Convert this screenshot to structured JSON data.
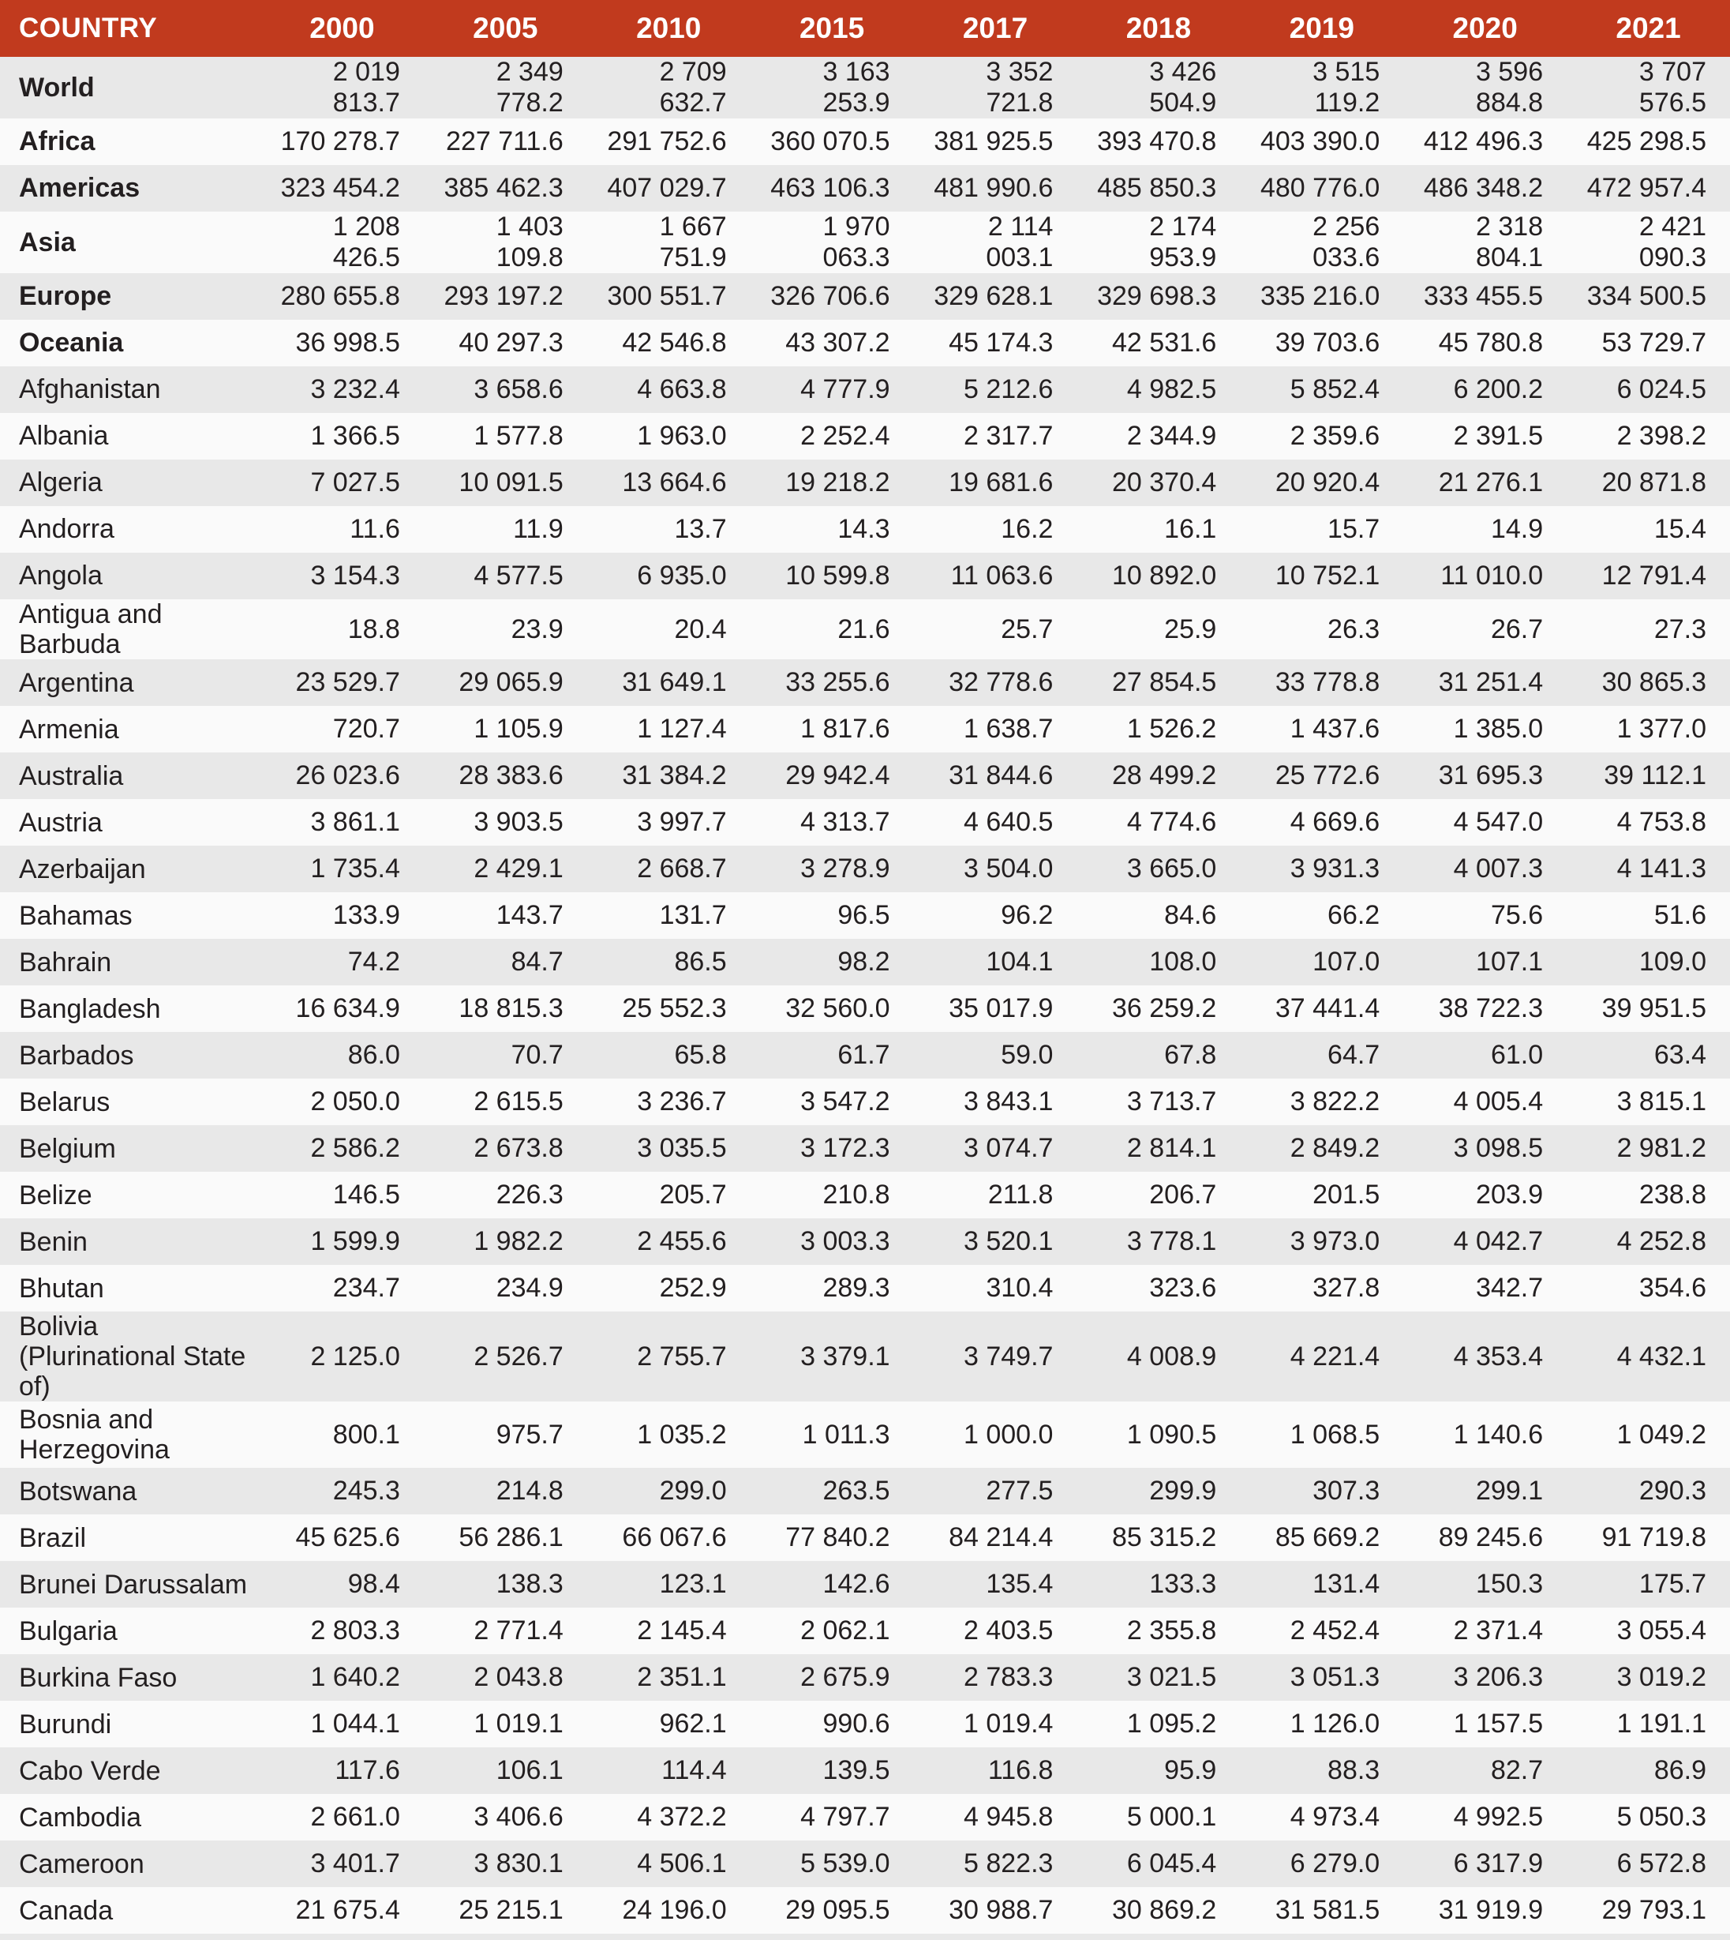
{
  "colors": {
    "header_bg": "#C13A1E",
    "header_text": "#FFFFFF",
    "stripe_row_bg": "#E8E8E8",
    "plain_row_bg": "#FAFAFA",
    "text": "#231F20"
  },
  "table": {
    "header": {
      "country": "COUNTRY",
      "years": [
        "2000",
        "2005",
        "2010",
        "2015",
        "2017",
        "2018",
        "2019",
        "2020",
        "2021"
      ]
    },
    "rows": [
      {
        "name": "World",
        "bold": true,
        "values": [
          "2 019 813.7",
          "2 349 778.2",
          "2 709 632.7",
          "3 163 253.9",
          "3 352 721.8",
          "3 426 504.9",
          "3 515 119.2",
          "3 596 884.8",
          "3 707 576.5"
        ]
      },
      {
        "name": "Africa",
        "bold": true,
        "values": [
          "170 278.7",
          "227 711.6",
          "291 752.6",
          "360 070.5",
          "381 925.5",
          "393 470.8",
          "403 390.0",
          "412 496.3",
          "425 298.5"
        ]
      },
      {
        "name": "Americas",
        "bold": true,
        "values": [
          "323 454.2",
          "385 462.3",
          "407 029.7",
          "463 106.3",
          "481 990.6",
          "485 850.3",
          "480 776.0",
          "486 348.2",
          "472 957.4"
        ]
      },
      {
        "name": "Asia",
        "bold": true,
        "values": [
          "1 208 426.5",
          "1 403 109.8",
          "1 667 751.9",
          "1 970 063.3",
          "2 114 003.1",
          "2 174 953.9",
          "2 256 033.6",
          "2 318 804.1",
          "2 421 090.3"
        ]
      },
      {
        "name": "Europe",
        "bold": true,
        "values": [
          "280 655.8",
          "293 197.2",
          "300 551.7",
          "326 706.6",
          "329 628.1",
          "329 698.3",
          "335 216.0",
          "333 455.5",
          "334 500.5"
        ]
      },
      {
        "name": "Oceania",
        "bold": true,
        "values": [
          "36 998.5",
          "40 297.3",
          "42 546.8",
          "43 307.2",
          "45 174.3",
          "42 531.6",
          "39 703.6",
          "45 780.8",
          "53 729.7"
        ]
      },
      {
        "name": "Afghanistan",
        "bold": false,
        "values": [
          "3 232.4",
          "3 658.6",
          "4 663.8",
          "4 777.9",
          "5 212.6",
          "4 982.5",
          "5 852.4",
          "6 200.2",
          "6 024.5"
        ]
      },
      {
        "name": "Albania",
        "bold": false,
        "values": [
          "1 366.5",
          "1 577.8",
          "1 963.0",
          "2 252.4",
          "2 317.7",
          "2 344.9",
          "2 359.6",
          "2 391.5",
          "2 398.2"
        ]
      },
      {
        "name": "Algeria",
        "bold": false,
        "values": [
          "7 027.5",
          "10 091.5",
          "13 664.6",
          "19 218.2",
          "19 681.6",
          "20 370.4",
          "20 920.4",
          "21 276.1",
          "20 871.8"
        ]
      },
      {
        "name": "Andorra",
        "bold": false,
        "values": [
          "11.6",
          "11.9",
          "13.7",
          "14.3",
          "16.2",
          "16.1",
          "15.7",
          "14.9",
          "15.4"
        ]
      },
      {
        "name": "Angola",
        "bold": false,
        "values": [
          "3 154.3",
          "4 577.5",
          "6 935.0",
          "10 599.8",
          "11 063.6",
          "10 892.0",
          "10 752.1",
          "11 010.0",
          "12 791.4"
        ]
      },
      {
        "name": "Antigua and Barbuda",
        "bold": false,
        "values": [
          "18.8",
          "23.9",
          "20.4",
          "21.6",
          "25.7",
          "25.9",
          "26.3",
          "26.7",
          "27.3"
        ]
      },
      {
        "name": "Argentina",
        "bold": false,
        "values": [
          "23 529.7",
          "29 065.9",
          "31 649.1",
          "33 255.6",
          "32 778.6",
          "27 854.5",
          "33 778.8",
          "31 251.4",
          "30 865.3"
        ]
      },
      {
        "name": "Armenia",
        "bold": false,
        "values": [
          "720.7",
          "1 105.9",
          "1 127.4",
          "1 817.6",
          "1 638.7",
          "1 526.2",
          "1 437.6",
          "1 385.0",
          "1 377.0"
        ]
      },
      {
        "name": "Australia",
        "bold": false,
        "values": [
          "26 023.6",
          "28 383.6",
          "31 384.2",
          "29 942.4",
          "31 844.6",
          "28 499.2",
          "25 772.6",
          "31 695.3",
          "39 112.1"
        ]
      },
      {
        "name": "Austria",
        "bold": false,
        "values": [
          "3 861.1",
          "3 903.5",
          "3 997.7",
          "4 313.7",
          "4 640.5",
          "4 774.6",
          "4 669.6",
          "4 547.0",
          "4 753.8"
        ]
      },
      {
        "name": "Azerbaijan",
        "bold": false,
        "values": [
          "1 735.4",
          "2 429.1",
          "2 668.7",
          "3 278.9",
          "3 504.0",
          "3 665.0",
          "3 931.3",
          "4 007.3",
          "4 141.3"
        ]
      },
      {
        "name": "Bahamas",
        "bold": false,
        "values": [
          "133.9",
          "143.7",
          "131.7",
          "96.5",
          "96.2",
          "84.6",
          "66.2",
          "75.6",
          "51.6"
        ]
      },
      {
        "name": "Bahrain",
        "bold": false,
        "values": [
          "74.2",
          "84.7",
          "86.5",
          "98.2",
          "104.1",
          "108.0",
          "107.0",
          "107.1",
          "109.0"
        ]
      },
      {
        "name": "Bangladesh",
        "bold": false,
        "values": [
          "16 634.9",
          "18 815.3",
          "25 552.3",
          "32 560.0",
          "35 017.9",
          "36 259.2",
          "37 441.4",
          "38 722.3",
          "39 951.5"
        ]
      },
      {
        "name": "Barbados",
        "bold": false,
        "values": [
          "86.0",
          "70.7",
          "65.8",
          "61.7",
          "59.0",
          "67.8",
          "64.7",
          "61.0",
          "63.4"
        ]
      },
      {
        "name": "Belarus",
        "bold": false,
        "values": [
          "2 050.0",
          "2 615.5",
          "3 236.7",
          "3 547.2",
          "3 843.1",
          "3 713.7",
          "3 822.2",
          "4 005.4",
          "3 815.1"
        ]
      },
      {
        "name": "Belgium",
        "bold": false,
        "values": [
          "2 586.2",
          "2 673.8",
          "3 035.5",
          "3 172.3",
          "3 074.7",
          "2 814.1",
          "2 849.2",
          "3 098.5",
          "2 981.2"
        ]
      },
      {
        "name": "Belize",
        "bold": false,
        "values": [
          "146.5",
          "226.3",
          "205.7",
          "210.8",
          "211.8",
          "206.7",
          "201.5",
          "203.9",
          "238.8"
        ]
      },
      {
        "name": "Benin",
        "bold": false,
        "values": [
          "1 599.9",
          "1 982.2",
          "2 455.6",
          "3 003.3",
          "3 520.1",
          "3 778.1",
          "3 973.0",
          "4 042.7",
          "4 252.8"
        ]
      },
      {
        "name": "Bhutan",
        "bold": false,
        "values": [
          "234.7",
          "234.9",
          "252.9",
          "289.3",
          "310.4",
          "323.6",
          "327.8",
          "342.7",
          "354.6"
        ]
      },
      {
        "name": "Bolivia\n(Plurinational State of)",
        "bold": false,
        "values": [
          "2 125.0",
          "2 526.7",
          "2 755.7",
          "3 379.1",
          "3 749.7",
          "4 008.9",
          "4 221.4",
          "4 353.4",
          "4 432.1"
        ]
      },
      {
        "name": "Bosnia and\nHerzegovina",
        "bold": false,
        "values": [
          "800.1",
          "975.7",
          "1 035.2",
          "1 011.3",
          "1 000.0",
          "1 090.5",
          "1 068.5",
          "1 140.6",
          "1 049.2"
        ]
      },
      {
        "name": "Botswana",
        "bold": false,
        "values": [
          "245.3",
          "214.8",
          "299.0",
          "263.5",
          "277.5",
          "299.9",
          "307.3",
          "299.1",
          "290.3"
        ]
      },
      {
        "name": "Brazil",
        "bold": false,
        "values": [
          "45 625.6",
          "56 286.1",
          "66 067.6",
          "77 840.2",
          "84 214.4",
          "85 315.2",
          "85 669.2",
          "89 245.6",
          "91 719.8"
        ]
      },
      {
        "name": "Brunei Darussalam",
        "bold": false,
        "values": [
          "98.4",
          "138.3",
          "123.1",
          "142.6",
          "135.4",
          "133.3",
          "131.4",
          "150.3",
          "175.7"
        ]
      },
      {
        "name": "Bulgaria",
        "bold": false,
        "values": [
          "2 803.3",
          "2 771.4",
          "2 145.4",
          "2 062.1",
          "2 403.5",
          "2 355.8",
          "2 452.4",
          "2 371.4",
          "3 055.4"
        ]
      },
      {
        "name": "Burkina Faso",
        "bold": false,
        "values": [
          "1 640.2",
          "2 043.8",
          "2 351.1",
          "2 675.9",
          "2 783.3",
          "3 021.5",
          "3 051.3",
          "3 206.3",
          "3 019.2"
        ]
      },
      {
        "name": "Burundi",
        "bold": false,
        "values": [
          "1 044.1",
          "1 019.1",
          "962.1",
          "990.6",
          "1 019.4",
          "1 095.2",
          "1 126.0",
          "1 157.5",
          "1 191.1"
        ]
      },
      {
        "name": "Cabo Verde",
        "bold": false,
        "values": [
          "117.6",
          "106.1",
          "114.4",
          "139.5",
          "116.8",
          "95.9",
          "88.3",
          "82.7",
          "86.9"
        ]
      },
      {
        "name": "Cambodia",
        "bold": false,
        "values": [
          "2 661.0",
          "3 406.6",
          "4 372.2",
          "4 797.7",
          "4 945.8",
          "5 000.1",
          "4 973.4",
          "4 992.5",
          "5 050.3"
        ]
      },
      {
        "name": "Cameroon",
        "bold": false,
        "values": [
          "3 401.7",
          "3 830.1",
          "4 506.1",
          "5 539.0",
          "5 822.3",
          "6 045.4",
          "6 279.0",
          "6 317.9",
          "6 572.8"
        ]
      },
      {
        "name": "Canada",
        "bold": false,
        "values": [
          "21 675.4",
          "25 215.1",
          "24 196.0",
          "29 095.5",
          "30 988.7",
          "30 869.2",
          "31 581.5",
          "31 919.9",
          "29 793.1"
        ]
      }
    ]
  }
}
